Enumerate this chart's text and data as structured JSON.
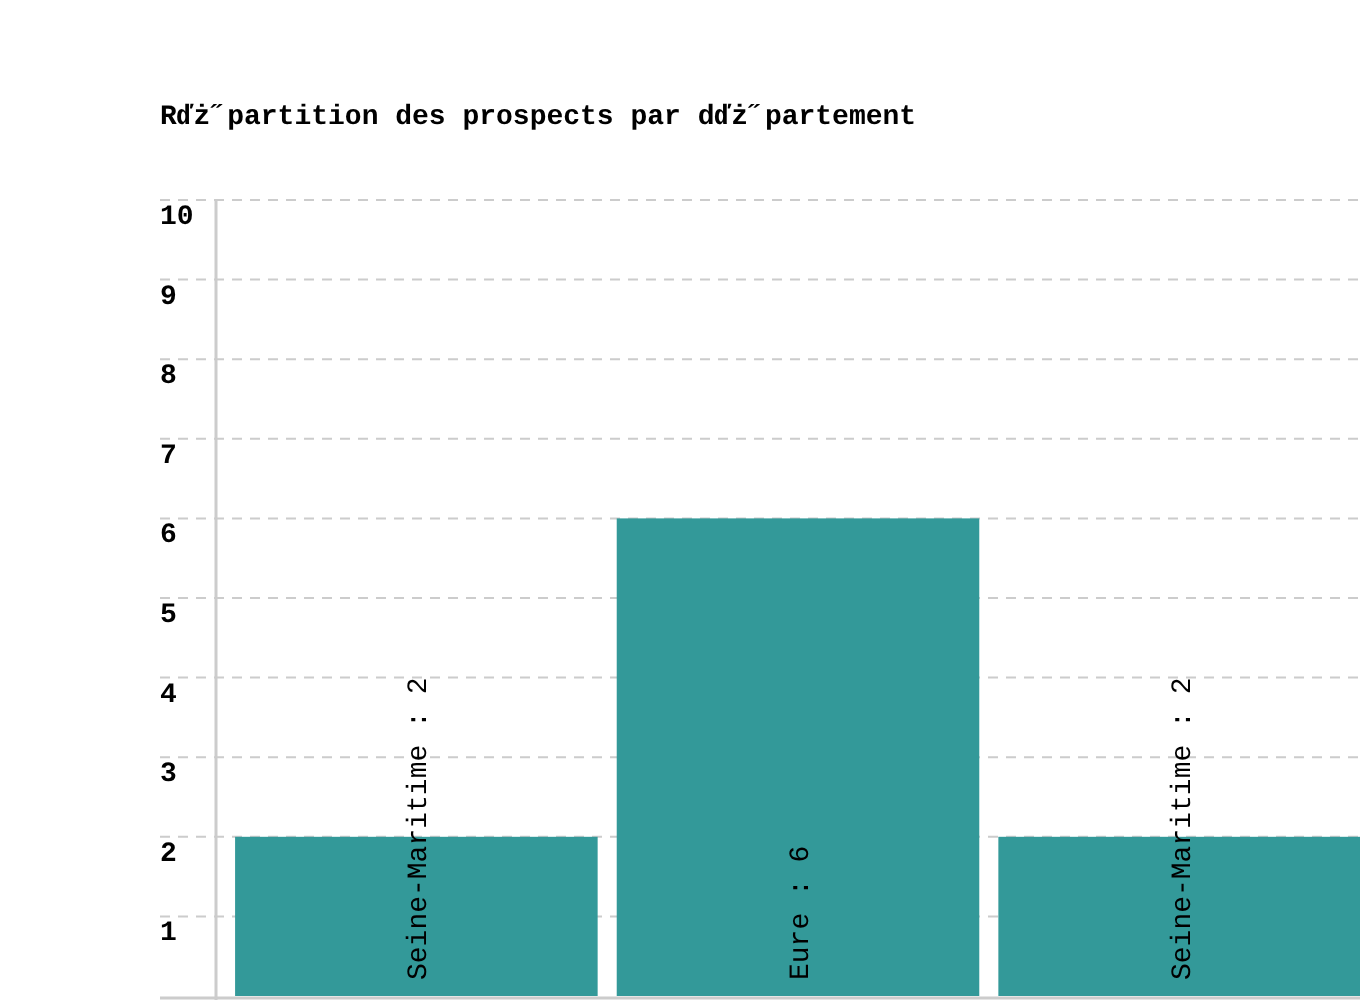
{
  "chart_data": {
    "type": "bar",
    "title": "Rďż˝partition des prospects par dďż˝partement",
    "categories": [
      null,
      null,
      null
    ],
    "values": [
      2,
      6,
      2
    ],
    "color": "#339999",
    "value_labels": [
      "Seine-Maritime : 2",
      "Eure : 6",
      "Seine-Maritime : 2"
    ],
    "ylim": [
      0,
      10
    ],
    "yticks": [
      1,
      2,
      3,
      4,
      5,
      6,
      7,
      8,
      9,
      10
    ],
    "grid": "y",
    "tick_labels": "y"
  }
}
